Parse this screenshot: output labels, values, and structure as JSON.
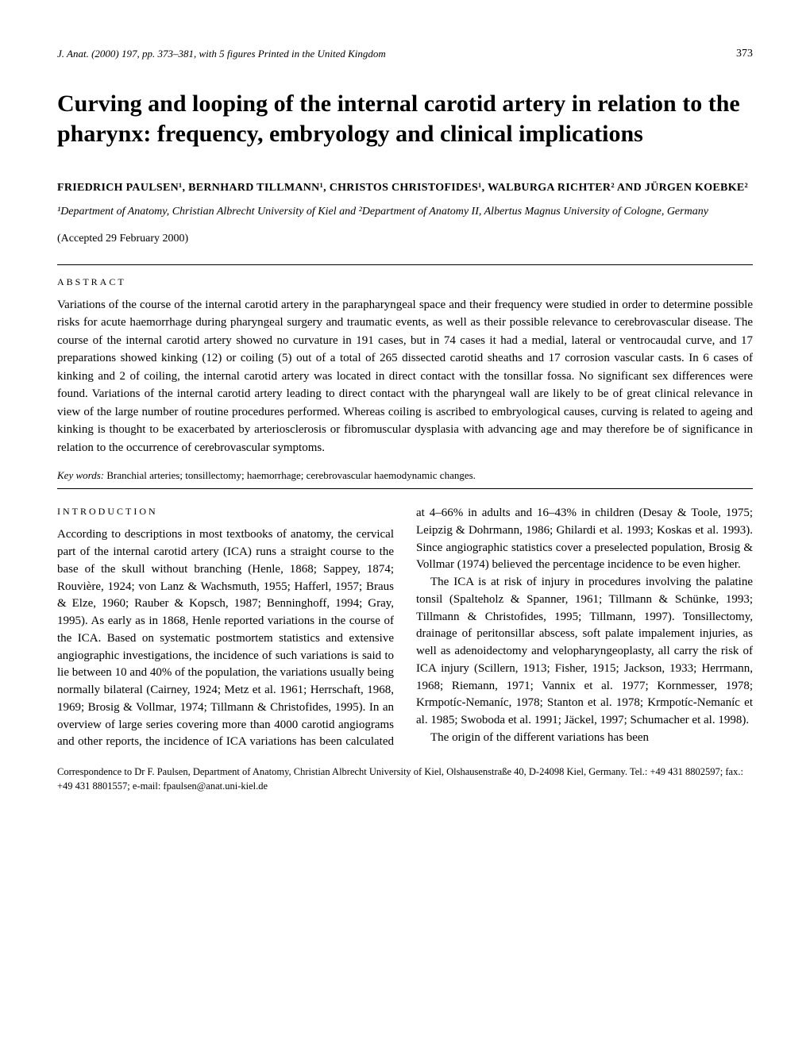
{
  "header": {
    "journal_line": "J. Anat. (2000) 197, pp. 373–381, with 5 figures   Printed in the United Kingdom",
    "page_number": "373"
  },
  "title": "Curving and looping of the internal carotid artery in relation to the pharynx: frequency, embryology and clinical implications",
  "authors_html": "FRIEDRICH PAULSEN¹, BERNHARD TILLMANN¹, CHRISTOS CHRISTOFIDES¹, WALBURGA RICHTER² AND JÜRGEN KOEBKE²",
  "affiliation": "¹Department of Anatomy, Christian Albrecht University of Kiel and ²Department of Anatomy II, Albertus Magnus University of Cologne, Germany",
  "accepted": "(Accepted 29 February 2000)",
  "abstract_label": "ABSTRACT",
  "abstract": "Variations of the course of the internal carotid artery in the parapharyngeal space and their frequency were studied in order to determine possible risks for acute haemorrhage during pharyngeal surgery and traumatic events, as well as their possible relevance to cerebrovascular disease. The course of the internal carotid artery showed no curvature in 191 cases, but in 74 cases it had a medial, lateral or ventrocaudal curve, and 17 preparations showed kinking (12) or coiling (5) out of a total of 265 dissected carotid sheaths and 17 corrosion vascular casts. In 6 cases of kinking and 2 of coiling, the internal carotid artery was located in direct contact with the tonsillar fossa. No significant sex differences were found. Variations of the internal carotid artery leading to direct contact with the pharyngeal wall are likely to be of great clinical relevance in view of the large number of routine procedures performed. Whereas coiling is ascribed to embryological causes, curving is related to ageing and kinking is thought to be exacerbated by arteriosclerosis or fibromuscular dysplasia with advancing age and may therefore be of significance in relation to the occurrence of cerebrovascular symptoms.",
  "keywords_label": "Key words:",
  "keywords": "Branchial arteries; tonsillectomy; haemorrhage; cerebrovascular haemodynamic changes.",
  "intro_label": "INTRODUCTION",
  "intro_p1": "According to descriptions in most textbooks of anatomy, the cervical part of the internal carotid artery (ICA) runs a straight course to the base of the skull without branching (Henle, 1868; Sappey, 1874; Rouvière, 1924; von Lanz & Wachsmuth, 1955; Hafferl, 1957; Braus & Elze, 1960; Rauber & Kopsch, 1987; Benninghoff, 1994; Gray, 1995). As early as in 1868, Henle reported variations in the course of the ICA. Based on systematic postmortem statistics and extensive angiographic investigations, the incidence of such variations is said to lie between 10 and 40% of the population, the variations usually being normally bilateral (Cairney, 1924; Metz et al. 1961; Herrschaft, 1968, 1969; Brosig & Vollmar, 1974; Tillmann & Christofides, 1995). In an overview of large series covering more than 4000 carotid angiograms and other reports, the incidence of ICA variations has been calculated at 4–66% in adults and 16–43% in children (Desay & Toole, 1975; Leipzig & Dohrmann, 1986; Ghilardi et al. 1993; Koskas et al. 1993). Since angiographic statistics cover a preselected population, Brosig & Vollmar (1974) believed the percentage incidence to be even higher.",
  "intro_p2": "The ICA is at risk of injury in procedures involving the palatine tonsil (Spalteholz & Spanner, 1961; Tillmann & Schünke, 1993; Tillmann & Christofides, 1995; Tillmann, 1997). Tonsillectomy, drainage of peritonsillar abscess, soft palate impalement injuries, as well as adenoidectomy and velopharyngeoplasty, all carry the risk of ICA injury (Scillern, 1913; Fisher, 1915; Jackson, 1933; Herrmann, 1968; Riemann, 1971; Vannix et al. 1977; Kornmesser, 1978; Krmpotíc-Nemaníc, 1978; Stanton et al. 1978; Krmpotíc-Nemaníc et al. 1985; Swoboda et al. 1991; Jäckel, 1997; Schumacher et al. 1998).",
  "intro_p3": "The origin of the different variations has been",
  "correspondence": "Correspondence to Dr F. Paulsen, Department of Anatomy, Christian Albrecht University of Kiel, Olshausenstraße 40, D-24098 Kiel, Germany. Tel.: +49 431 8802597; fax.: +49 431 8801557; e-mail: fpaulsen@anat.uni-kiel.de"
}
